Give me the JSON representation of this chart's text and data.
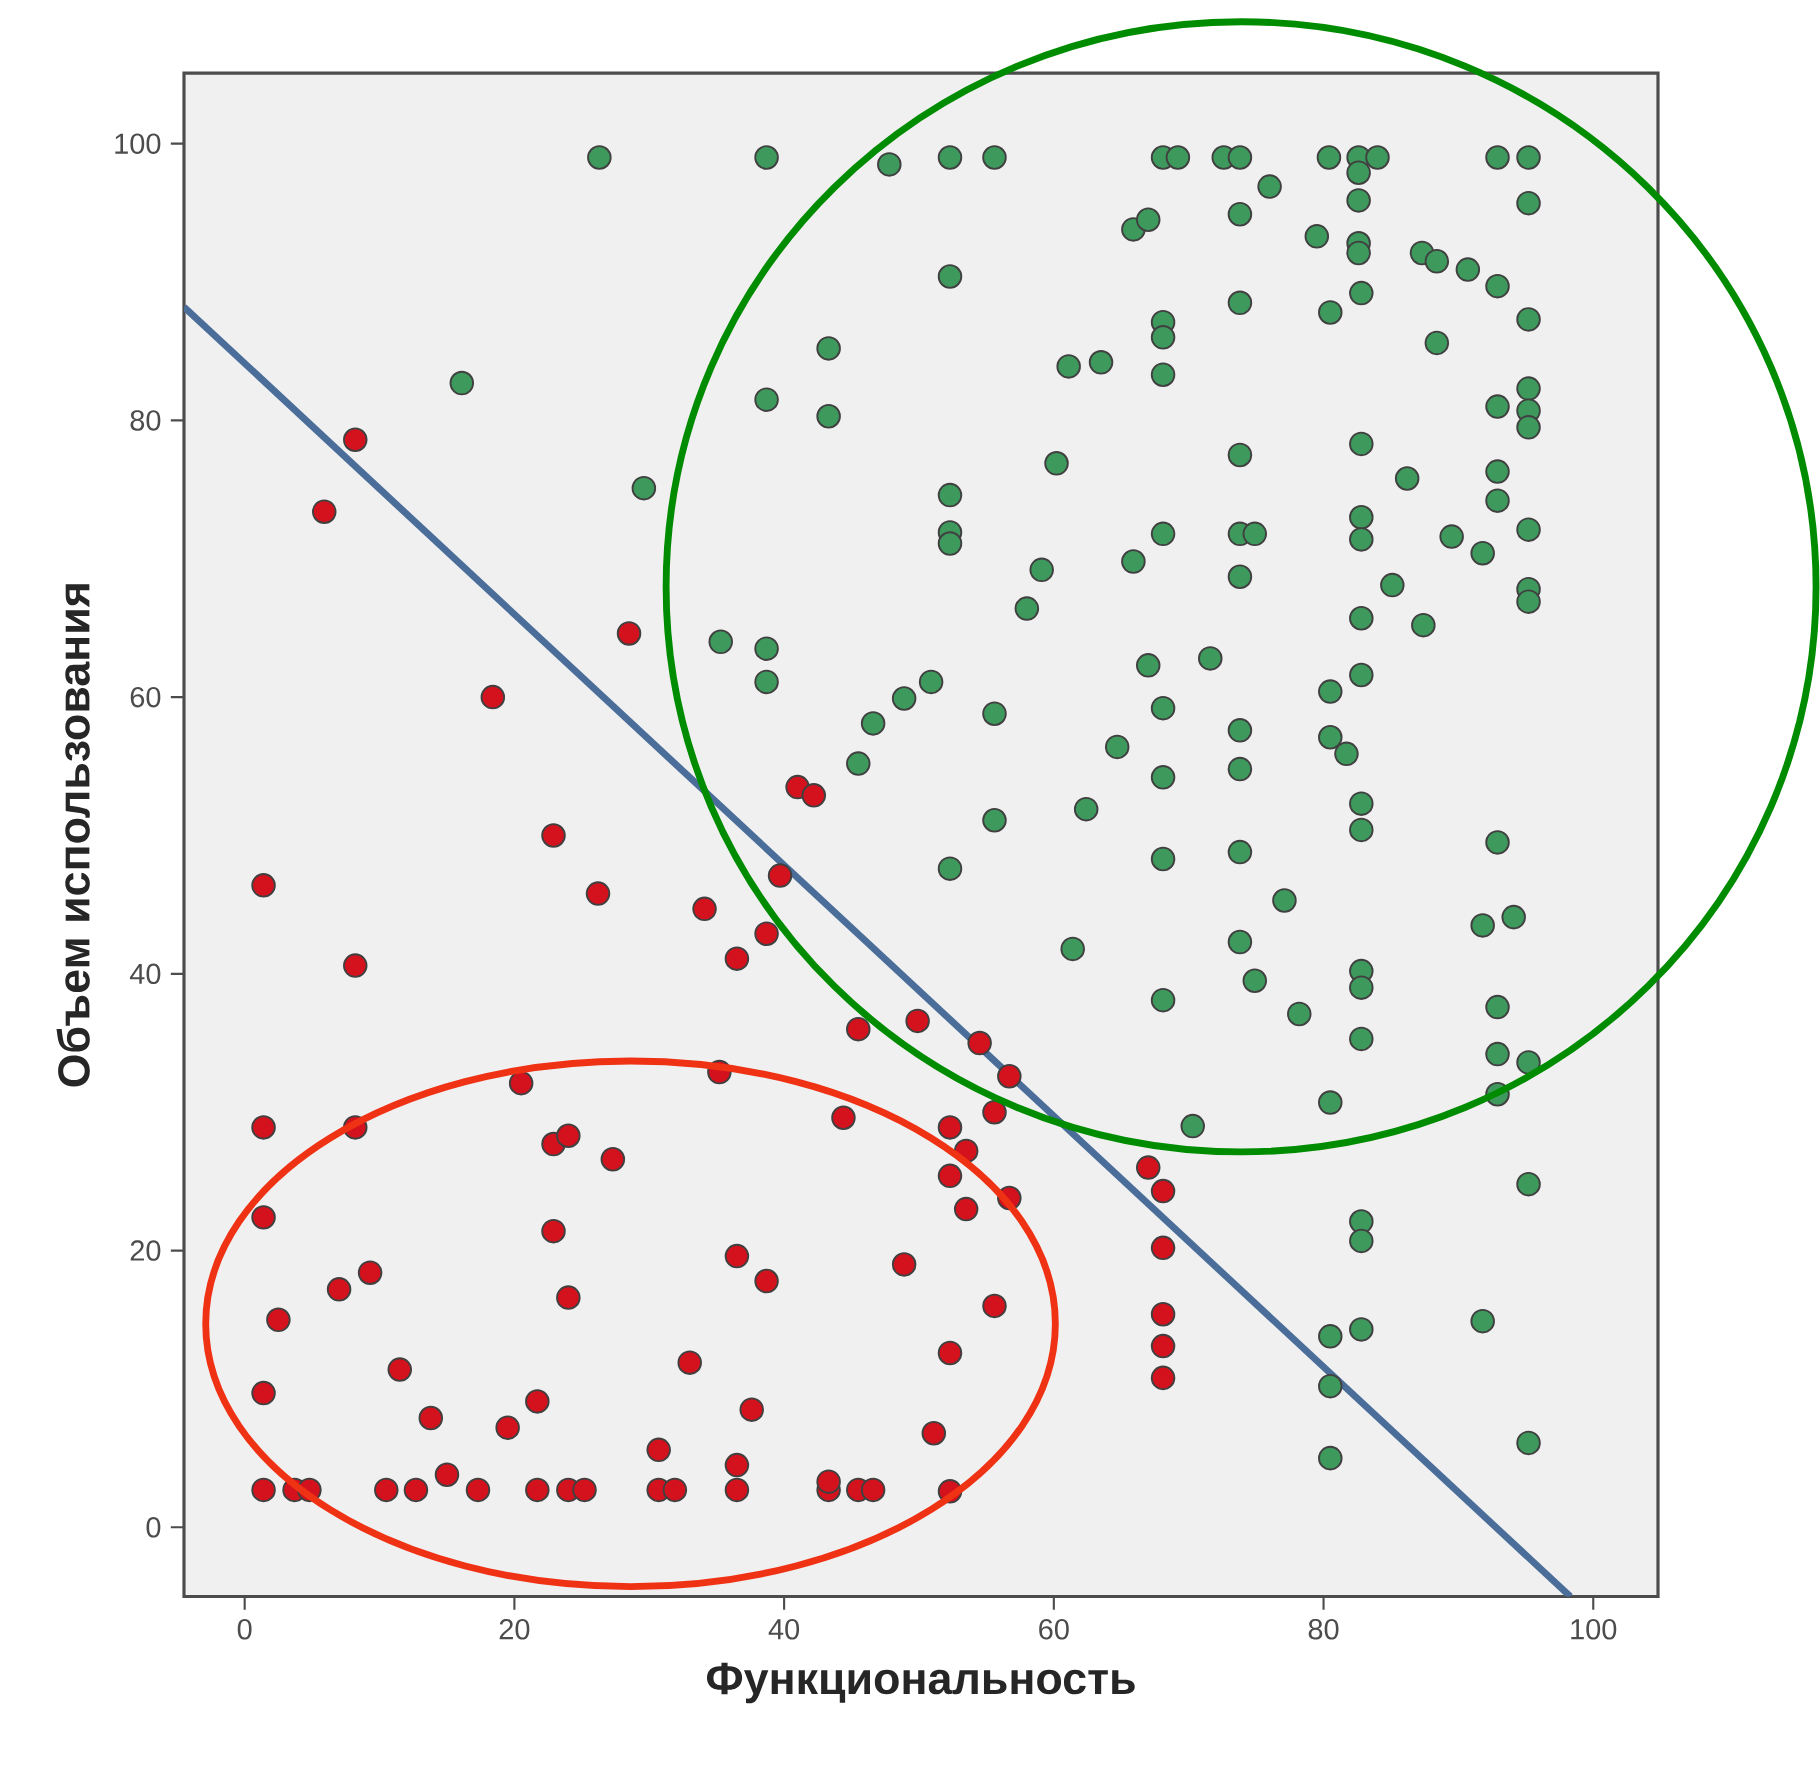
{
  "chart_data": {
    "type": "scatter",
    "xlabel": "Функциональность",
    "ylabel": "Объем использования",
    "xlim": [
      -4.5,
      104.8
    ],
    "ylim": [
      -5,
      105.1
    ],
    "xticks": [
      0,
      20,
      40,
      60,
      80,
      100
    ],
    "yticks": [
      0,
      20,
      40,
      60,
      80,
      100
    ],
    "series": [
      {
        "color": "#3d9a5c",
        "marker": "circle",
        "x": [
          26.3,
          38.7,
          47.8,
          16.1,
          43.3,
          38.7,
          43.3,
          29.6,
          35.3,
          38.7,
          38.7,
          48.9,
          46.6,
          45.5,
          50.9,
          52.3,
          55.6,
          68.1,
          69.2,
          72.6,
          73.8,
          80.4,
          82.6,
          84.0,
          92.9,
          95.2,
          82.6,
          82.6,
          76,
          73.8,
          95.2,
          65.9,
          67,
          79.5,
          82.6,
          82.6,
          87.3,
          88.4,
          90.7,
          92.9,
          95.2,
          52.3,
          73.8,
          80.5,
          82.8,
          88.4,
          68.1,
          68.1,
          68.1,
          61.1,
          63.5,
          95.2,
          95.2,
          95.2,
          92.9,
          73.8,
          82.8,
          60.2,
          86.2,
          92.9,
          92.9,
          52.3,
          52.3,
          52.3,
          68.1,
          73.8,
          74.9,
          82.8,
          82.8,
          89.5,
          91.8,
          95.2,
          95.2,
          95.2,
          59.1,
          58,
          65.9,
          73.8,
          85.1,
          82.8,
          87.4,
          71.6,
          67,
          68.1,
          80.5,
          82.8,
          55.6,
          64.7,
          73.8,
          73.8,
          80.5,
          81.7,
          68.1,
          62.4,
          82.8,
          82.8,
          92.9,
          55.6,
          52.3,
          68.1,
          73.8,
          77.1,
          91.8,
          94.1,
          61.4,
          73.8,
          74.9,
          82.8,
          82.8,
          68.1,
          78.2,
          82.8,
          92.9,
          92.9,
          95.2,
          92.9,
          80.5,
          70.3,
          95.2,
          82.8,
          82.8,
          80.5,
          82.8,
          91.8,
          80.5,
          95.2,
          80.5
        ],
        "values": [
          99,
          99,
          98.5,
          82.7,
          85.2,
          81.5,
          80.3,
          75.1,
          64,
          63.5,
          61.1,
          59.9,
          58.1,
          55.2,
          61.1,
          99,
          99,
          99,
          99,
          99,
          99,
          99,
          99,
          99,
          99,
          99,
          97.9,
          95.9,
          96.9,
          94.9,
          95.7,
          93.8,
          94.5,
          93.3,
          92.8,
          92.1,
          92.1,
          91.5,
          90.9,
          89.7,
          87.3,
          90.4,
          88.5,
          87.8,
          89.2,
          85.6,
          87.1,
          86,
          83.3,
          83.9,
          84.2,
          82.3,
          80.7,
          79.5,
          81,
          77.5,
          78.3,
          76.9,
          75.8,
          76.3,
          74.2,
          74.6,
          71.9,
          71.1,
          71.8,
          71.8,
          71.8,
          73,
          71.4,
          71.6,
          70.4,
          72.1,
          67.8,
          66.9,
          69.2,
          66.4,
          69.8,
          68.7,
          68.1,
          65.7,
          65.2,
          62.8,
          62.3,
          59.2,
          60.4,
          61.6,
          58.8,
          56.4,
          57.6,
          54.8,
          57.1,
          55.9,
          54.2,
          51.9,
          52.3,
          50.4,
          49.5,
          51.1,
          47.6,
          48.3,
          48.8,
          45.3,
          43.5,
          44.1,
          41.8,
          42.3,
          39.5,
          40.2,
          39,
          38.1,
          37.1,
          35.3,
          37.6,
          34.2,
          33.6,
          31.3,
          30.7,
          29,
          24.8,
          22.1,
          20.7,
          13.8,
          14.3,
          14.9,
          10.2,
          6.1,
          5
        ]
      },
      {
        "color": "#d4121d",
        "marker": "circle",
        "x": [
          8.2,
          5.9,
          28.5,
          18.4,
          41,
          42.2,
          22.9,
          1.4,
          26.2,
          34.1,
          38.7,
          36.5,
          8.2,
          39.7,
          45.5,
          20.5,
          35.2,
          1.4,
          8.2,
          22.9,
          24,
          27.3,
          44.4,
          1.4,
          22.9,
          36.5,
          38.7,
          7,
          9.3,
          24,
          2.5,
          11.5,
          33,
          1.4,
          13.8,
          19.5,
          21.7,
          37.6,
          30.7,
          36.5,
          15,
          1.4,
          3.7,
          4.8,
          10.5,
          12.7,
          17.3,
          21.7,
          24,
          25.2,
          30.7,
          31.9,
          36.5,
          43.3,
          45.5,
          46.6,
          43.3,
          49.9,
          54.5,
          56.7,
          55.6,
          52.3,
          53.5,
          52.3,
          53.5,
          56.7,
          48.9,
          55.6,
          52.3,
          51.1,
          52.3,
          67,
          68.1,
          68.1,
          68.1,
          68.1,
          68.1
        ],
        "values": [
          78.6,
          73.4,
          64.6,
          60,
          53.5,
          52.9,
          50,
          46.4,
          45.8,
          44.7,
          42.9,
          41.1,
          40.6,
          47.1,
          36,
          32.1,
          32.9,
          28.9,
          28.9,
          27.7,
          28.3,
          26.6,
          29.6,
          22.4,
          21.4,
          19.6,
          17.8,
          17.2,
          18.4,
          16.6,
          15,
          11.4,
          11.9,
          9.7,
          7.9,
          7.2,
          9.1,
          8.5,
          5.6,
          4.5,
          3.8,
          2.7,
          2.7,
          2.7,
          2.7,
          2.7,
          2.7,
          2.7,
          2.7,
          2.7,
          2.7,
          2.7,
          2.7,
          2.7,
          2.7,
          2.7,
          3.3,
          36.6,
          35,
          32.6,
          30,
          28.9,
          27.2,
          25.4,
          23,
          23.8,
          19,
          16,
          12.6,
          6.8,
          2.6,
          26,
          24.3,
          20.2,
          15.4,
          13.1,
          10.8
        ]
      },
      {
        "type": "line",
        "marker": "none",
        "color": "#4a6e99",
        "x": [
          -4.5,
          98.3
        ],
        "values": [
          88.2,
          -5
        ]
      }
    ]
  }
}
